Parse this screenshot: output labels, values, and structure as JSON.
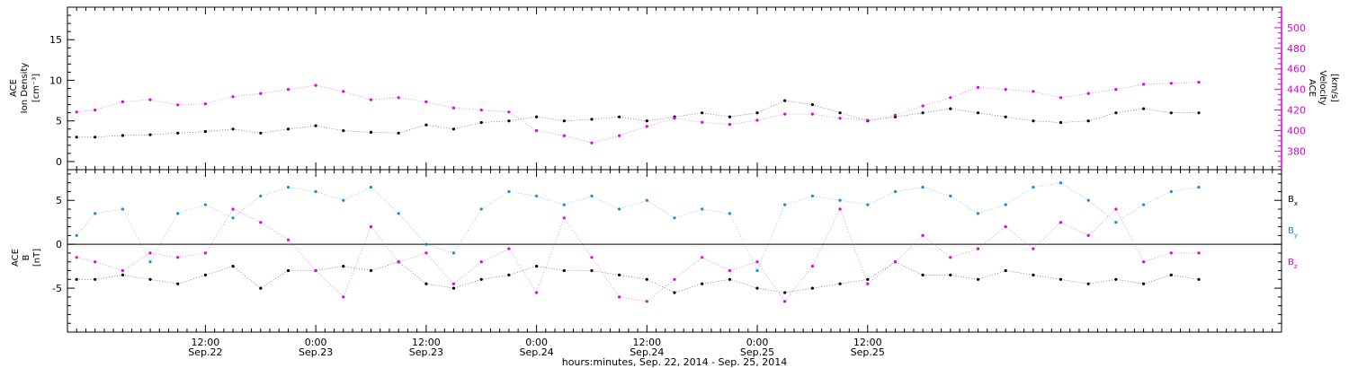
{
  "chart_data": [
    {
      "panel": "top",
      "type": "scatter",
      "ylabel_left": [
        "ACE",
        "Ion Density",
        "[cm⁻³]"
      ],
      "ylabel_right": [
        "ACE",
        "Velocity",
        "[km/s]"
      ],
      "left_axis": {
        "range": [
          -1,
          19
        ],
        "ticks": [
          0,
          5,
          10,
          15
        ],
        "color": "#000000"
      },
      "right_axis": {
        "range": [
          362,
          520
        ],
        "ticks": [
          380,
          400,
          420,
          440,
          460,
          480,
          500
        ],
        "color": "#e000e0"
      },
      "x_hours_range": [
        -15,
        117
      ],
      "series": [
        {
          "axis": "left",
          "color": "#000000",
          "hours": [
            -14,
            -12,
            -9,
            -6,
            -3,
            0,
            3,
            6,
            9,
            12,
            15,
            18,
            21,
            24,
            27,
            30,
            33,
            36,
            39,
            42,
            45,
            48,
            51,
            54,
            57,
            60,
            63,
            66,
            69,
            72,
            75,
            78,
            81,
            84,
            87,
            90,
            93,
            96,
            99,
            102,
            105,
            108
          ],
          "values": [
            3.0,
            3.0,
            3.2,
            3.3,
            3.5,
            3.7,
            4.0,
            3.5,
            4.0,
            4.4,
            3.8,
            3.6,
            3.5,
            4.5,
            4.0,
            4.8,
            5.0,
            5.5,
            5.0,
            5.2,
            5.5,
            5.0,
            5.5,
            6.0,
            5.5,
            6.0,
            7.5,
            7.0,
            6.0,
            5.0,
            5.5,
            6.0,
            6.5,
            6.0,
            5.5,
            5.0,
            4.8,
            5.0,
            6.0,
            6.5,
            6.0,
            6.0
          ]
        },
        {
          "axis": "right",
          "color": "#e000e0",
          "hours": [
            -14,
            -12,
            -9,
            -6,
            -3,
            0,
            3,
            6,
            9,
            12,
            15,
            18,
            21,
            24,
            27,
            30,
            33,
            36,
            39,
            42,
            45,
            48,
            51,
            54,
            57,
            60,
            63,
            66,
            69,
            72,
            75,
            78,
            81,
            84,
            87,
            90,
            93,
            96,
            99,
            102,
            105,
            108
          ],
          "values": [
            418,
            420,
            428,
            430,
            425,
            426,
            433,
            436,
            440,
            444,
            438,
            430,
            432,
            428,
            422,
            420,
            418,
            400,
            395,
            388,
            395,
            404,
            412,
            408,
            406,
            410,
            416,
            416,
            412,
            410,
            415,
            424,
            432,
            442,
            440,
            438,
            432,
            436,
            440,
            445,
            446,
            447
          ]
        }
      ]
    },
    {
      "panel": "bottom",
      "type": "scatter",
      "ylabel_left": [
        "ACE",
        "B",
        "[nT]"
      ],
      "left_axis": {
        "range": [
          -10,
          8.5
        ],
        "ticks": [
          -5,
          0,
          5
        ]
      },
      "zero_line": true,
      "x_hours_range": [
        -15,
        117
      ],
      "series": [
        {
          "name": "Bx",
          "color": "#000000",
          "hours": [
            -14,
            -12,
            -9,
            -6,
            -3,
            0,
            3,
            6,
            9,
            12,
            15,
            18,
            21,
            24,
            27,
            30,
            33,
            36,
            39,
            42,
            45,
            48,
            51,
            54,
            57,
            60,
            63,
            66,
            69,
            72,
            75,
            78,
            81,
            84,
            87,
            90,
            93,
            96,
            99,
            102,
            105,
            108
          ],
          "values": [
            -4.0,
            -4.0,
            -3.5,
            -4.0,
            -4.5,
            -3.5,
            -2.5,
            -5.0,
            -3.0,
            -3.0,
            -2.5,
            -3.0,
            -2.0,
            -4.5,
            -5.0,
            -4.0,
            -3.5,
            -2.5,
            -3.0,
            -3.0,
            -3.5,
            -4.0,
            -5.5,
            -4.5,
            -4.0,
            -5.0,
            -5.5,
            -5.0,
            -4.5,
            -4.0,
            -2.0,
            -3.5,
            -3.5,
            -4.0,
            -3.0,
            -3.5,
            -4.0,
            -4.5,
            -4.0,
            -4.5,
            -3.5,
            -4.0
          ]
        },
        {
          "name": "By",
          "color": "#1888e0",
          "hours": [
            -14,
            -12,
            -9,
            -6,
            -3,
            0,
            3,
            6,
            9,
            12,
            15,
            18,
            21,
            24,
            27,
            30,
            33,
            36,
            39,
            42,
            45,
            48,
            51,
            54,
            57,
            60,
            63,
            66,
            69,
            72,
            75,
            78,
            81,
            84,
            87,
            90,
            93,
            96,
            99,
            102,
            105,
            108
          ],
          "values": [
            1.0,
            3.5,
            4.0,
            -2.0,
            3.5,
            4.5,
            3.0,
            5.5,
            6.5,
            6.0,
            5.0,
            6.5,
            3.5,
            0.0,
            -1.0,
            4.0,
            6.0,
            5.5,
            4.5,
            5.5,
            4.0,
            5.0,
            3.0,
            4.0,
            3.5,
            -3.0,
            4.5,
            5.5,
            5.0,
            4.5,
            6.0,
            6.5,
            5.5,
            3.5,
            4.5,
            6.5,
            7.0,
            5.0,
            2.5,
            4.5,
            6.0,
            6.5
          ]
        },
        {
          "name": "Bz",
          "color": "#e000e0",
          "hours": [
            -14,
            -12,
            -9,
            -6,
            -3,
            0,
            3,
            6,
            9,
            12,
            15,
            18,
            21,
            24,
            27,
            30,
            33,
            36,
            39,
            42,
            45,
            48,
            51,
            54,
            57,
            60,
            63,
            66,
            69,
            72,
            75,
            78,
            81,
            84,
            87,
            90,
            93,
            96,
            99,
            102,
            105,
            108
          ],
          "values": [
            -1.5,
            -2.0,
            -3.0,
            -1.0,
            -1.5,
            -1.0,
            4.0,
            2.5,
            0.5,
            -3.0,
            -6.0,
            2.0,
            -2.0,
            -1.0,
            -4.5,
            -2.0,
            -0.5,
            -5.5,
            3.0,
            -1.5,
            -6.0,
            -6.5,
            -4.0,
            -1.5,
            -3.0,
            -2.0,
            -6.5,
            -2.5,
            4.0,
            -4.5,
            -2.0,
            1.0,
            -1.5,
            -0.5,
            2.0,
            -0.5,
            2.5,
            1.0,
            4.0,
            -2.0,
            -1.0,
            -1.0
          ]
        }
      ],
      "legend": {
        "placement": "right",
        "entries": [
          {
            "main": "B",
            "sub": "x",
            "color": "#000000"
          },
          {
            "main": "B",
            "sub": "y",
            "color": "#1888e0"
          },
          {
            "main": "B",
            "sub": "z",
            "color": "#e000e0"
          }
        ]
      }
    }
  ],
  "x_axis": {
    "ticks": [
      {
        "hours": 0,
        "time": "12:00",
        "date": "Sep.22"
      },
      {
        "hours": 12,
        "time": "0:00",
        "date": "Sep.23"
      },
      {
        "hours": 24,
        "time": "12:00",
        "date": "Sep.23"
      },
      {
        "hours": 36,
        "time": "0:00",
        "date": "Sep.24"
      },
      {
        "hours": 48,
        "time": "12:00",
        "date": "Sep.24"
      },
      {
        "hours": 60,
        "time": "0:00",
        "date": "Sep.25"
      },
      {
        "hours": 72,
        "time": "12:00",
        "date": "Sep.25"
      }
    ],
    "minor_tick_hours": 1,
    "xlabel": "hours:minutes, Sep. 22, 2014 - Sep. 25, 2014"
  }
}
